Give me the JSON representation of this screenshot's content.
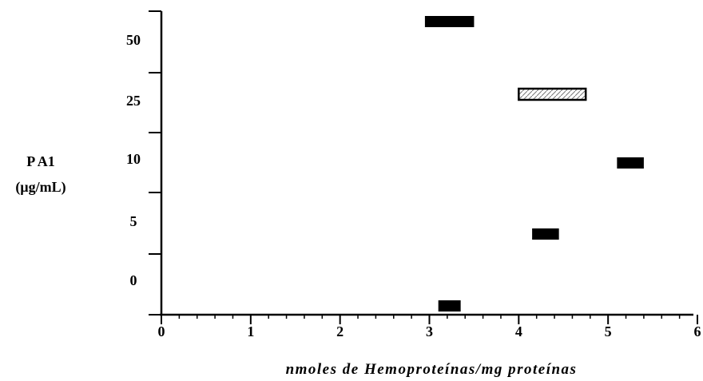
{
  "chart_data": {
    "type": "bar",
    "orientation": "horizontal-range",
    "xlabel": "nmoles de Hemoproteínas/mg proteínas",
    "ylabel_line1": "P A1",
    "ylabel_line2": "(µg/mL)",
    "x_ticks": [
      "0",
      "1",
      "2",
      "3",
      "4",
      "5",
      "6"
    ],
    "xlim": [
      0,
      6
    ],
    "categories": [
      "0",
      "5",
      "10",
      "25",
      "50"
    ],
    "ranges": [
      {
        "category": "0",
        "x_start": 3.1,
        "x_end": 3.35,
        "style": "filled"
      },
      {
        "category": "5",
        "x_start": 4.15,
        "x_end": 4.45,
        "style": "filled"
      },
      {
        "category": "10",
        "x_start": 5.1,
        "x_end": 5.4,
        "style": "filled"
      },
      {
        "category": "25",
        "x_start": 4.0,
        "x_end": 4.75,
        "style": "hatched"
      },
      {
        "category": "50",
        "x_start": 2.95,
        "x_end": 3.5,
        "style": "filled"
      }
    ],
    "grid": false,
    "legend": "none"
  }
}
